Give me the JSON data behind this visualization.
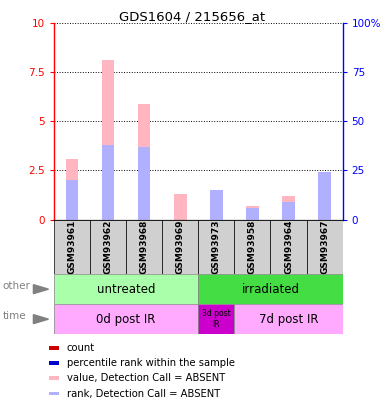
{
  "title": "GDS1604 / 215656_at",
  "samples": [
    "GSM93961",
    "GSM93962",
    "GSM93968",
    "GSM93969",
    "GSM93973",
    "GSM93958",
    "GSM93964",
    "GSM93967"
  ],
  "value_absent": [
    3.1,
    8.1,
    5.9,
    1.3,
    1.5,
    0.7,
    1.2,
    2.1
  ],
  "rank_absent": [
    2.0,
    3.8,
    3.7,
    0.0,
    1.5,
    0.6,
    0.9,
    2.4
  ],
  "ylim": [
    0,
    10
  ],
  "yticks": [
    0,
    2.5,
    5,
    7.5,
    10
  ],
  "ytick_labels_left": [
    "0",
    "2.5",
    "5",
    "7.5",
    "10"
  ],
  "ytick_labels_right": [
    "0",
    "25",
    "50",
    "75",
    "100%"
  ],
  "bar_width": 0.35,
  "color_value_absent": "#ffb6c1",
  "color_rank_absent": "#b0b0ff",
  "group_other_untreated_color": "#aaffaa",
  "group_other_irradiated_color": "#44dd44",
  "group_time_light_color": "#ffaaff",
  "group_time_dark_color": "#cc00cc",
  "legend_items": [
    {
      "label": "count",
      "color": "#cc0000",
      "marker": "s"
    },
    {
      "label": "percentile rank within the sample",
      "color": "#0000cc",
      "marker": "s"
    },
    {
      "label": "value, Detection Call = ABSENT",
      "color": "#ffb6c1",
      "marker": "s"
    },
    {
      "label": "rank, Detection Call = ABSENT",
      "color": "#b0b0ff",
      "marker": "s"
    }
  ]
}
